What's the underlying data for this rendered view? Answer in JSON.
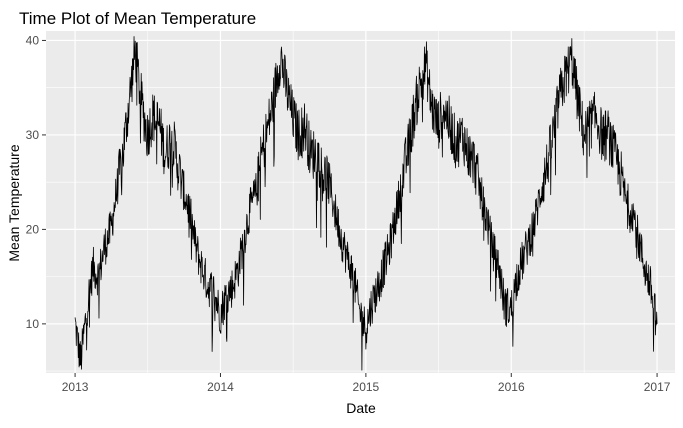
{
  "chart_data": {
    "type": "line",
    "title": "Time Plot of Mean Temperature",
    "xlabel": "Date",
    "ylabel": "Mean Temperature",
    "x_type": "date",
    "xlim": [
      "2012-10-20",
      "2017-02-15"
    ],
    "ylim": [
      4.8,
      41.0
    ],
    "x_ticks": [
      {
        "label": "2013",
        "value": "2013-01-01"
      },
      {
        "label": "2014",
        "value": "2014-01-01"
      },
      {
        "label": "2015",
        "value": "2015-01-01"
      },
      {
        "label": "2016",
        "value": "2016-01-01"
      },
      {
        "label": "2017",
        "value": "2017-01-01"
      }
    ],
    "y_ticks": [
      {
        "label": "10",
        "value": 10
      },
      {
        "label": "20",
        "value": 20
      },
      {
        "label": "30",
        "value": 30
      },
      {
        "label": "40",
        "value": 40
      }
    ],
    "grid": true,
    "legend": "none",
    "colors": {
      "panel": "#ebebeb",
      "grid": "#ffffff",
      "line": "#000000",
      "axis_text": "#4d4d4d",
      "label_text": "#000000"
    },
    "series": [
      {
        "x": [
          "2013-01-01",
          "2013-01-15",
          "2013-02-01",
          "2013-02-15",
          "2013-03-01",
          "2013-03-15",
          "2013-04-01",
          "2013-04-15",
          "2013-05-01",
          "2013-05-15",
          "2013-06-01",
          "2013-06-15",
          "2013-07-01",
          "2013-07-15",
          "2013-08-01",
          "2013-08-15",
          "2013-09-01",
          "2013-09-15",
          "2013-10-01",
          "2013-10-15",
          "2013-11-01",
          "2013-11-15",
          "2013-12-01",
          "2013-12-15",
          "2014-01-01",
          "2014-01-15",
          "2014-02-01",
          "2014-02-15",
          "2014-03-01",
          "2014-03-15",
          "2014-04-01",
          "2014-04-15",
          "2014-05-01",
          "2014-05-15",
          "2014-06-01",
          "2014-06-15",
          "2014-07-01",
          "2014-07-15",
          "2014-08-01",
          "2014-08-15",
          "2014-09-01",
          "2014-09-15",
          "2014-10-01",
          "2014-10-15",
          "2014-11-01",
          "2014-11-15",
          "2014-12-01",
          "2014-12-15",
          "2015-01-01",
          "2015-01-15",
          "2015-02-01",
          "2015-02-15",
          "2015-03-01",
          "2015-03-15",
          "2015-04-01",
          "2015-04-15",
          "2015-05-01",
          "2015-05-15",
          "2015-06-01",
          "2015-06-15",
          "2015-07-01",
          "2015-07-15",
          "2015-08-01",
          "2015-08-15",
          "2015-09-01",
          "2015-09-15",
          "2015-10-01",
          "2015-10-15",
          "2015-11-01",
          "2015-11-15",
          "2015-12-01",
          "2015-12-15",
          "2016-01-01",
          "2016-01-15",
          "2016-02-01",
          "2016-02-15",
          "2016-03-01",
          "2016-03-15",
          "2016-04-01",
          "2016-04-15",
          "2016-05-01",
          "2016-05-15",
          "2016-06-01",
          "2016-06-15",
          "2016-07-01",
          "2016-07-15",
          "2016-08-01",
          "2016-08-15",
          "2016-09-01",
          "2016-09-15",
          "2016-10-01",
          "2016-10-15",
          "2016-11-01",
          "2016-11-15",
          "2016-12-01",
          "2016-12-15",
          "2017-01-01"
        ],
        "values": [
          10.0,
          6.0,
          12.0,
          16.0,
          15.0,
          18.0,
          20.0,
          24.0,
          28.0,
          33.0,
          38.8,
          34.0,
          30.0,
          32.0,
          31.0,
          28.0,
          30.0,
          27.0,
          24.0,
          22.0,
          18.0,
          16.0,
          14.0,
          13.5,
          11.0,
          13.0,
          14.0,
          16.0,
          19.0,
          22.0,
          24.0,
          28.0,
          31.0,
          34.0,
          38.5,
          35.0,
          32.0,
          30.0,
          31.0,
          28.0,
          28.0,
          26.0,
          25.0,
          22.0,
          19.0,
          17.0,
          15.0,
          11.5,
          9.5,
          12.0,
          14.0,
          16.0,
          18.0,
          21.0,
          25.0,
          28.0,
          32.0,
          35.0,
          37.5,
          33.0,
          31.0,
          33.0,
          31.0,
          29.0,
          30.0,
          28.0,
          27.0,
          24.0,
          21.0,
          18.0,
          16.0,
          12.0,
          11.5,
          15.0,
          17.0,
          19.0,
          21.0,
          24.0,
          27.0,
          30.0,
          34.0,
          36.0,
          38.0,
          34.0,
          30.0,
          31.0,
          32.0,
          30.0,
          30.0,
          28.0,
          26.0,
          23.0,
          22.0,
          19.0,
          16.0,
          14.0,
          10.0
        ]
      }
    ]
  }
}
